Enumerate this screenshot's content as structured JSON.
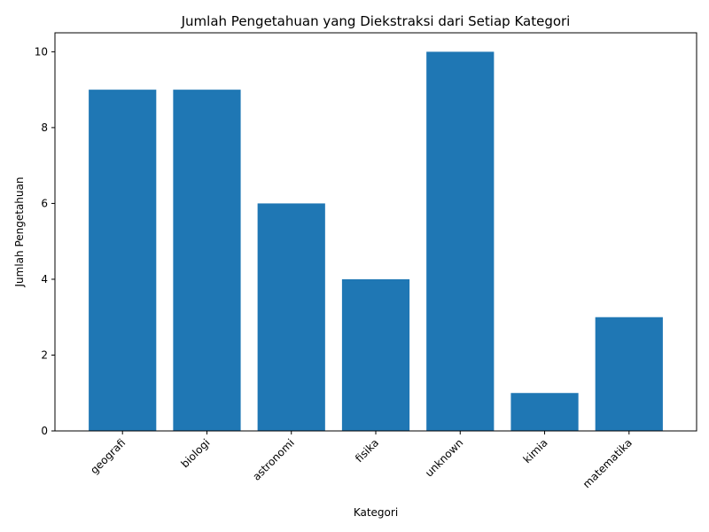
{
  "chart_data": {
    "type": "bar",
    "title": "Jumlah Pengetahuan yang Diekstraksi dari Setiap Kategori",
    "xlabel": "Kategori",
    "ylabel": "Jumlah Pengetahuan",
    "categories": [
      "geografi",
      "biologi",
      "astronomi",
      "fisika",
      "unknown",
      "kimia",
      "matematika"
    ],
    "values": [
      9,
      9,
      6,
      4,
      10,
      1,
      3
    ],
    "ylim": [
      0,
      10.5
    ],
    "yticks": [
      0,
      2,
      4,
      6,
      8,
      10
    ],
    "bar_color": "#1f77b4",
    "grid": false,
    "legend": false,
    "xtick_rotation": "45 degrees"
  }
}
